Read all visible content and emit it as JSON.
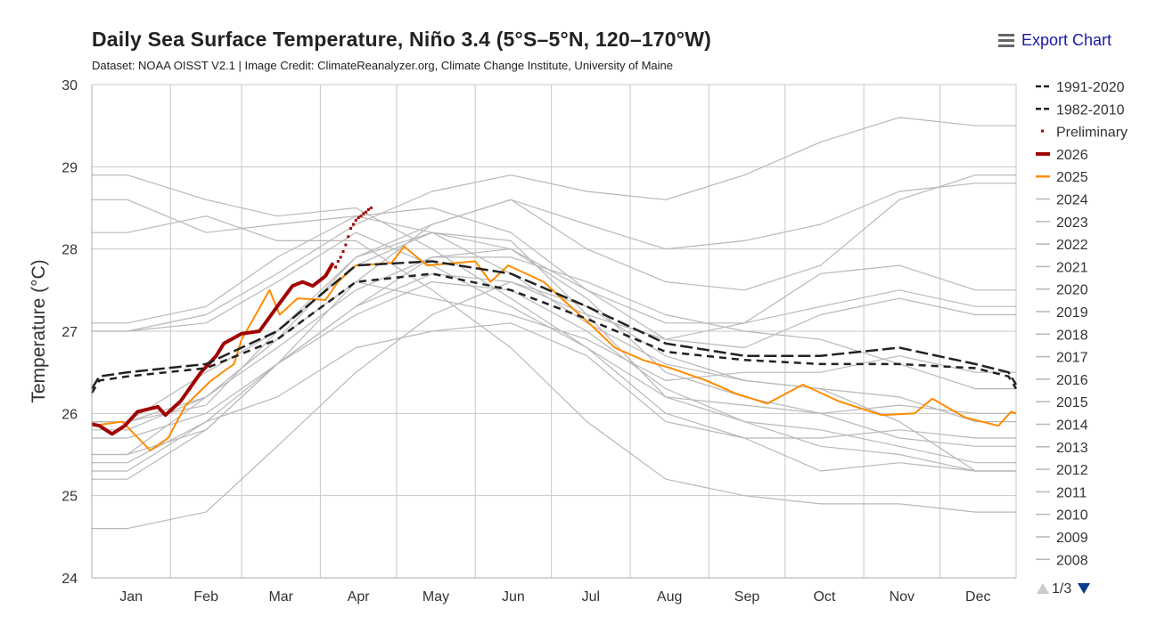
{
  "title": "Daily Sea Surface Temperature, Niño 3.4 (5°S–5°N, 120–170°W)",
  "subtitle": "Dataset: NOAA OISST V2.1 | Image Credit: ClimateReanalyzer.org, Climate Change Institute, University of Maine",
  "export_label": "Export Chart",
  "pagination": "1/3",
  "chart_data": {
    "type": "line",
    "ylabel": "Temperature (°C)",
    "ylim": [
      24,
      30
    ],
    "yticks": [
      24,
      25,
      26,
      27,
      28,
      29,
      30
    ],
    "xticks": [
      "Jan",
      "Feb",
      "Mar",
      "Apr",
      "May",
      "Jun",
      "Jul",
      "Aug",
      "Sep",
      "Oct",
      "Nov",
      "Dec"
    ],
    "x_unit": "day of year",
    "grid": true,
    "legend_position": "right",
    "colors": {
      "climatology": "#222222",
      "current": "#a00000",
      "prev": "#ff8c00",
      "other": "#b8b8b8"
    },
    "series": [
      {
        "name": "1991-2020",
        "style": "long-dash",
        "color": "#222222",
        "x": [
          1,
          4,
          15,
          46,
          74,
          105,
          135,
          166,
          196,
          227,
          258,
          288,
          319,
          349,
          362,
          365
        ],
        "y": [
          26.3,
          26.45,
          26.5,
          26.6,
          27.0,
          27.8,
          27.85,
          27.7,
          27.3,
          26.85,
          26.7,
          26.7,
          26.8,
          26.6,
          26.5,
          26.35
        ]
      },
      {
        "name": "1982-2010",
        "style": "dash",
        "color": "#222222",
        "x": [
          1,
          4,
          15,
          46,
          74,
          105,
          135,
          166,
          196,
          227,
          258,
          288,
          319,
          349,
          362,
          365
        ],
        "y": [
          26.25,
          26.4,
          26.45,
          26.55,
          26.9,
          27.6,
          27.7,
          27.5,
          27.15,
          26.75,
          26.65,
          26.6,
          26.6,
          26.55,
          26.45,
          26.3
        ]
      },
      {
        "name": "Preliminary",
        "style": "dots",
        "color": "#a00000",
        "x": [
          97,
          98,
          99,
          100,
          101,
          102,
          103,
          104,
          105,
          106,
          107,
          108,
          109,
          110,
          111
        ],
        "y": [
          27.78,
          27.85,
          27.9,
          27.97,
          28.05,
          28.15,
          28.25,
          28.3,
          28.35,
          28.38,
          28.4,
          28.43,
          28.45,
          28.48,
          28.5
        ]
      },
      {
        "name": "2026",
        "style": "thick",
        "color": "#a00000",
        "x": [
          1,
          4,
          9,
          14,
          19,
          23,
          27,
          30,
          36,
          44,
          50,
          53,
          60,
          67,
          74,
          80,
          84,
          88,
          93,
          96
        ],
        "y": [
          25.87,
          25.85,
          25.75,
          25.85,
          26.02,
          26.05,
          26.08,
          25.98,
          26.15,
          26.5,
          26.7,
          26.85,
          26.97,
          27.0,
          27.3,
          27.55,
          27.6,
          27.55,
          27.67,
          27.83
        ]
      },
      {
        "name": "2025",
        "style": "solid",
        "color": "#ff8c00",
        "x": [
          1,
          13,
          24,
          31,
          38,
          48,
          57,
          60,
          67,
          71,
          75,
          82,
          93,
          98,
          105,
          119,
          124,
          133,
          152,
          158,
          165,
          172,
          179,
          186,
          195,
          207,
          218,
          229,
          243,
          254,
          267,
          281,
          295,
          312,
          325,
          332,
          345,
          358,
          363,
          365
        ],
        "y": [
          25.85,
          25.9,
          25.55,
          25.7,
          26.1,
          26.4,
          26.6,
          26.9,
          27.28,
          27.5,
          27.2,
          27.4,
          27.38,
          27.6,
          27.8,
          27.83,
          28.03,
          27.8,
          27.85,
          27.6,
          27.8,
          27.7,
          27.6,
          27.4,
          27.15,
          26.8,
          26.65,
          26.55,
          26.4,
          26.25,
          26.12,
          26.35,
          26.15,
          25.98,
          26.0,
          26.18,
          25.95,
          25.85,
          26.02,
          26.0
        ]
      },
      {
        "name": "2024",
        "color": "#b8b8b8",
        "y": [
          28.6,
          28.2,
          28.3,
          28.4,
          28.2,
          27.7,
          27.1,
          26.6,
          26.4,
          26.3,
          26.2,
          25.9
        ]
      },
      {
        "name": "2023",
        "color": "#b8b8b8",
        "y": [
          25.8,
          26.2,
          26.9,
          27.9,
          28.3,
          28.6,
          28.3,
          28.0,
          28.1,
          28.3,
          28.7,
          28.8
        ]
      },
      {
        "name": "2022",
        "color": "#b8b8b8",
        "y": [
          25.4,
          25.9,
          26.2,
          26.8,
          27.0,
          27.1,
          26.7,
          25.9,
          25.7,
          25.7,
          25.8,
          25.7
        ]
      },
      {
        "name": "2021",
        "color": "#b8b8b8",
        "y": [
          25.5,
          25.8,
          26.6,
          27.2,
          27.6,
          27.5,
          27.0,
          26.3,
          25.9,
          25.8,
          25.6,
          25.4
        ]
      },
      {
        "name": "2020",
        "color": "#b8b8b8",
        "y": [
          27.0,
          27.1,
          27.6,
          28.2,
          27.8,
          27.3,
          26.8,
          26.0,
          25.7,
          25.3,
          25.4,
          25.3
        ]
      },
      {
        "name": "2019",
        "color": "#b8b8b8",
        "y": [
          27.1,
          27.3,
          27.9,
          28.4,
          28.5,
          28.2,
          27.5,
          26.9,
          26.8,
          27.2,
          27.4,
          27.2
        ]
      },
      {
        "name": "2018",
        "color": "#b8b8b8",
        "y": [
          25.7,
          26.0,
          26.6,
          27.3,
          27.9,
          28.0,
          27.5,
          27.1,
          27.1,
          27.7,
          27.8,
          27.5
        ]
      },
      {
        "name": "2017",
        "color": "#b8b8b8",
        "y": [
          25.9,
          26.5,
          27.0,
          27.9,
          28.2,
          28.0,
          27.4,
          26.5,
          26.2,
          26.0,
          25.7,
          25.6
        ]
      },
      {
        "name": "2016",
        "color": "#b8b8b8",
        "y": [
          28.9,
          28.6,
          28.4,
          28.5,
          28.0,
          27.4,
          26.8,
          26.2,
          26.1,
          26.0,
          26.1,
          26.0
        ]
      },
      {
        "name": "2015",
        "color": "#b8b8b8",
        "y": [
          27.0,
          27.2,
          27.7,
          28.3,
          28.7,
          28.9,
          28.7,
          28.6,
          28.9,
          29.3,
          29.6,
          29.5
        ]
      },
      {
        "name": "2014",
        "color": "#b8b8b8",
        "y": [
          25.9,
          26.1,
          27.0,
          27.8,
          28.2,
          28.1,
          27.2,
          26.9,
          27.1,
          27.3,
          27.5,
          27.3
        ]
      },
      {
        "name": "2013",
        "color": "#b8b8b8",
        "y": [
          25.9,
          26.2,
          26.9,
          27.6,
          27.4,
          27.2,
          26.9,
          26.4,
          26.5,
          26.5,
          26.7,
          26.5
        ]
      },
      {
        "name": "2012",
        "color": "#b8b8b8",
        "y": [
          25.5,
          26.2,
          26.8,
          27.5,
          27.9,
          27.9,
          27.6,
          27.2,
          27.0,
          26.9,
          26.6,
          26.3
        ]
      },
      {
        "name": "2011",
        "color": "#b8b8b8",
        "y": [
          25.2,
          25.8,
          26.6,
          27.3,
          27.7,
          27.6,
          27.2,
          26.2,
          25.9,
          25.6,
          25.5,
          25.3
        ]
      },
      {
        "name": "2010",
        "color": "#b8b8b8",
        "y": [
          28.2,
          28.4,
          28.1,
          28.1,
          27.5,
          26.8,
          25.9,
          25.2,
          25.0,
          24.9,
          24.9,
          24.8
        ]
      },
      {
        "name": "2009",
        "color": "#b8b8b8",
        "y": [
          25.3,
          25.9,
          26.6,
          27.6,
          28.3,
          28.6,
          28.0,
          27.6,
          27.5,
          27.8,
          28.6,
          28.9
        ]
      },
      {
        "name": "2008",
        "color": "#b8b8b8",
        "y": [
          24.6,
          24.8,
          25.6,
          26.5,
          27.2,
          27.6,
          27.3,
          26.7,
          26.4,
          26.3,
          25.9,
          25.3
        ]
      }
    ]
  }
}
